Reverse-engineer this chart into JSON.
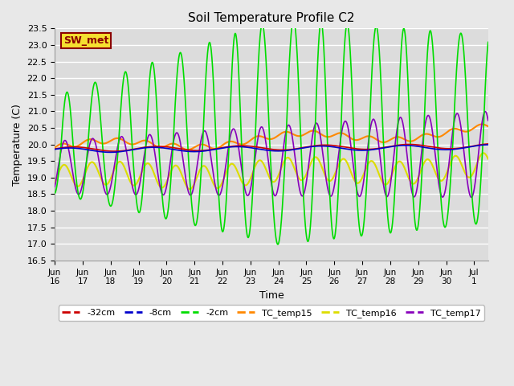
{
  "title": "Soil Temperature Profile C2",
  "xlabel": "Time",
  "ylabel": "Temperature (C)",
  "ylim": [
    16.5,
    23.5
  ],
  "xlim_start": 0,
  "xlim_end": 15.5,
  "annotation_text": "SW_met",
  "fig_facecolor": "#e8e8e8",
  "ax_facecolor": "#dcdcdc",
  "grid_color": "#ffffff",
  "series_colors": {
    "-32cm": "#cc0000",
    "-8cm": "#0000cc",
    "-2cm": "#00dd00",
    "TC_temp15": "#ff8800",
    "TC_temp16": "#dddd00",
    "TC_temp17": "#8800bb"
  },
  "linewidth": 1.2,
  "tick_labels": [
    "Jun\n16",
    "Jun\n17",
    "Jun\n18",
    "Jun\n19",
    "Jun\n20",
    "Jun\n21",
    "Jun\n22",
    "Jun\n23",
    "Jun\n24",
    "Jun\n25",
    "Jun\n26",
    "Jun\n27",
    "Jun\n28",
    "Jun\n29",
    "Jun\n30",
    "Jul\n1"
  ],
  "tick_positions": [
    0,
    1,
    2,
    3,
    4,
    5,
    6,
    7,
    8,
    9,
    10,
    11,
    12,
    13,
    14,
    15
  ],
  "yticks": [
    16.5,
    17.0,
    17.5,
    18.0,
    18.5,
    19.0,
    19.5,
    20.0,
    20.5,
    21.0,
    21.5,
    22.0,
    22.5,
    23.0,
    23.5
  ]
}
